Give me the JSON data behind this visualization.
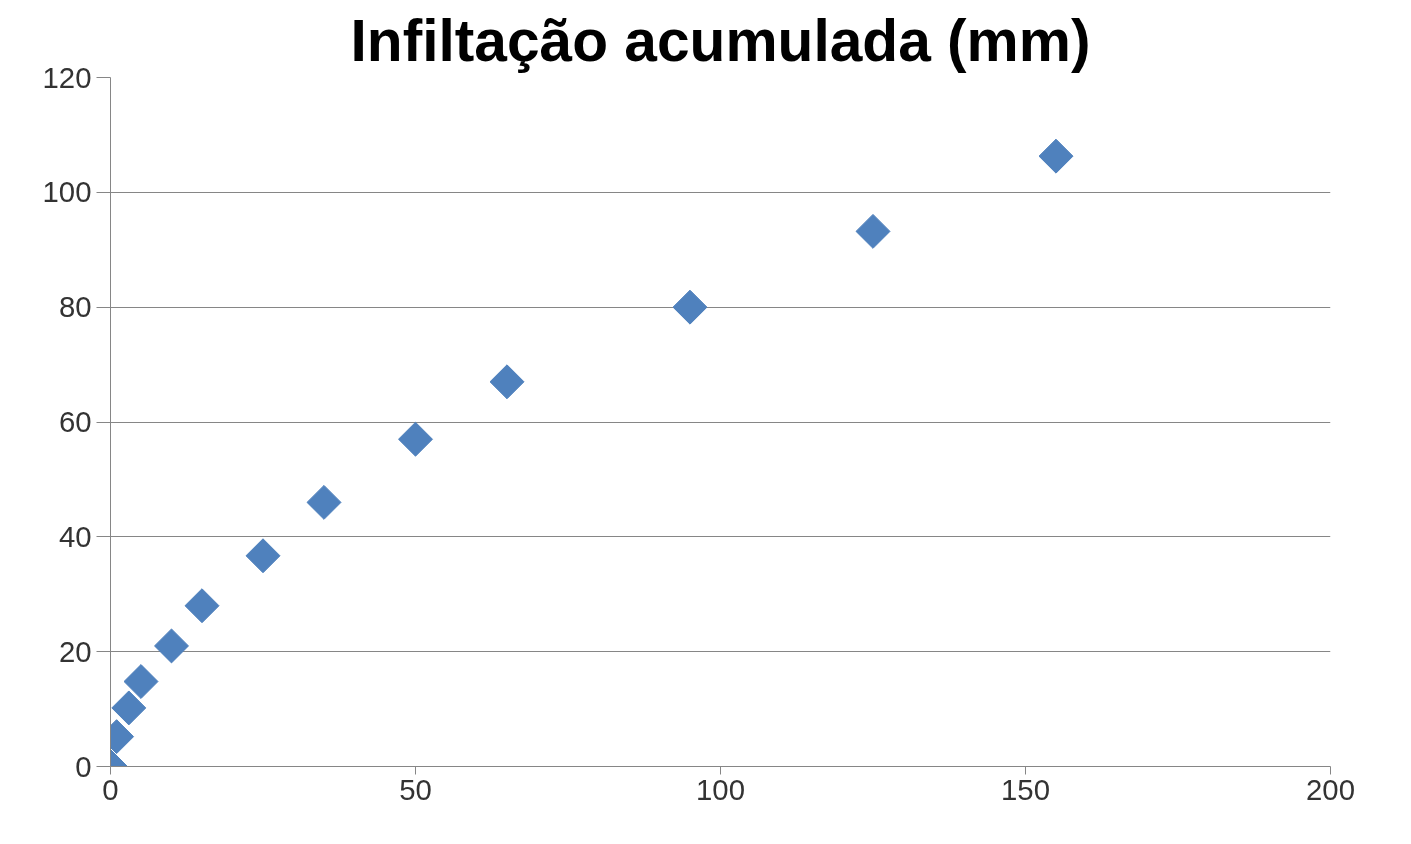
{
  "chart_data": {
    "type": "scatter",
    "title": "Infiltação acumulada (mm)",
    "x": [
      0,
      1,
      3,
      5,
      10,
      15,
      25,
      35,
      50,
      65,
      95,
      125,
      155
    ],
    "series": [
      {
        "color": "#4f81bd",
        "values": [
          0,
          5.2,
          10.2,
          14.8,
          21,
          28,
          36.7,
          46,
          57,
          67,
          80,
          93.2,
          106.3
        ]
      }
    ],
    "xlim": [
      0,
      200
    ],
    "xticks": [
      0,
      50,
      100,
      150,
      200
    ],
    "ylim": [
      0,
      120
    ],
    "yticks": [
      0,
      20,
      40,
      60,
      80,
      100,
      120
    ],
    "grid": "y",
    "marker": "diamond"
  }
}
